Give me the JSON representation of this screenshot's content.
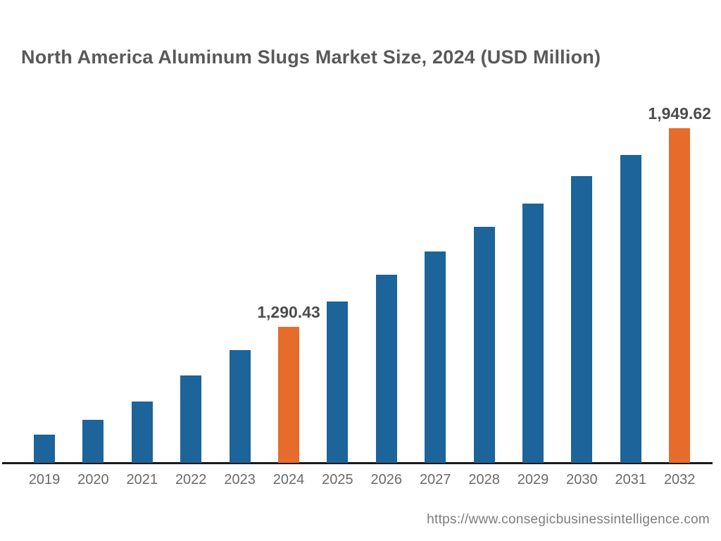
{
  "page": {
    "background": "#ffffff"
  },
  "chart_data": {
    "type": "bar",
    "title": "North America Aluminum Slugs Market Size, 2024 (USD Million)",
    "xlabel": "",
    "ylabel": "",
    "categories": [
      "2019",
      "2020",
      "2021",
      "2022",
      "2023",
      "2024",
      "2025",
      "2026",
      "2027",
      "2028",
      "2029",
      "2030",
      "2031",
      "2032"
    ],
    "values": [
      933,
      982,
      1043,
      1129,
      1213,
      1290.43,
      1375,
      1463,
      1541,
      1622,
      1700,
      1791,
      1861,
      1949.62
    ],
    "points": [
      {
        "year": "2019",
        "value": 933,
        "highlight": false
      },
      {
        "year": "2020",
        "value": 982,
        "highlight": false
      },
      {
        "year": "2021",
        "value": 1043,
        "highlight": false
      },
      {
        "year": "2022",
        "value": 1129,
        "highlight": false
      },
      {
        "year": "2023",
        "value": 1213,
        "highlight": false
      },
      {
        "year": "2024",
        "value": 1290.43,
        "highlight": true,
        "label": "1,290.43"
      },
      {
        "year": "2025",
        "value": 1375,
        "highlight": false
      },
      {
        "year": "2026",
        "value": 1463,
        "highlight": false
      },
      {
        "year": "2027",
        "value": 1541,
        "highlight": false
      },
      {
        "year": "2028",
        "value": 1622,
        "highlight": false
      },
      {
        "year": "2029",
        "value": 1700,
        "highlight": false
      },
      {
        "year": "2030",
        "value": 1791,
        "highlight": false
      },
      {
        "year": "2031",
        "value": 1861,
        "highlight": false
      },
      {
        "year": "2032",
        "value": 1949.62,
        "highlight": true,
        "label": "1,949.62"
      }
    ],
    "colors": {
      "bar_default": "#1C6499",
      "bar_highlight": "#E66C2C",
      "axis": "#1a1a1a",
      "title_text": "#595959",
      "tick_text": "#6a6a6a",
      "value_label_text": "#4d4d4d"
    },
    "ylim": [
      839,
      1949.62
    ],
    "grid": false,
    "legend": false
  },
  "footer": {
    "url": "https://www.consegicbusinessintelligence.com"
  }
}
